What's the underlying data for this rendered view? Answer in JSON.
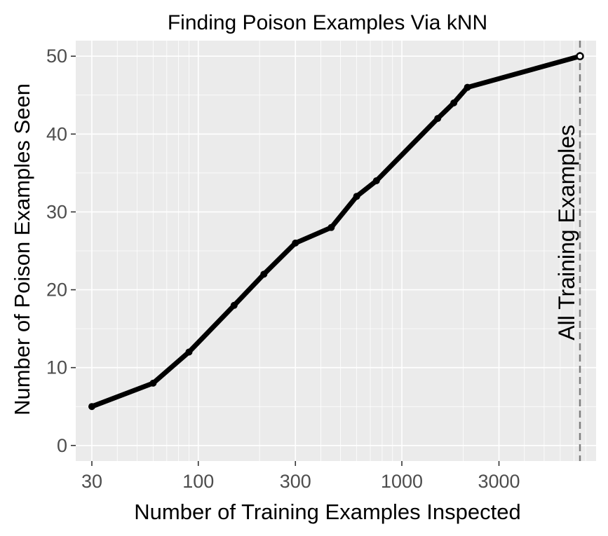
{
  "chart_data": {
    "type": "line",
    "title": "Finding Poison Examples Via kNN",
    "xlabel": "Number of Training Examples Inspected",
    "ylabel": "Number of Poison Examples Seen",
    "x_scale": "log10",
    "xlim": [
      25,
      9000
    ],
    "ylim": [
      -2,
      52
    ],
    "x_ticks": [
      30,
      100,
      300,
      1000,
      3000
    ],
    "x_tick_labels": [
      "30",
      "100",
      "300",
      "1000",
      "3000"
    ],
    "y_ticks": [
      0,
      10,
      20,
      30,
      40,
      50
    ],
    "y_tick_labels": [
      "0",
      "10",
      "20",
      "30",
      "40",
      "50"
    ],
    "grid": true,
    "series": [
      {
        "x": [
          30,
          60,
          90,
          150,
          210,
          300,
          450,
          600,
          750,
          1500,
          1800,
          2100,
          7500
        ],
        "y": [
          5,
          8,
          12,
          18,
          22,
          26,
          28,
          32,
          34,
          42,
          44,
          46,
          50
        ]
      }
    ],
    "vline": {
      "x": 7500,
      "label": "All Training Examples",
      "style": "dashed"
    },
    "colors": {
      "line": "#000000",
      "panel": "#ebebeb",
      "grid": "#ffffff",
      "vline": "#7f7f7f"
    }
  }
}
